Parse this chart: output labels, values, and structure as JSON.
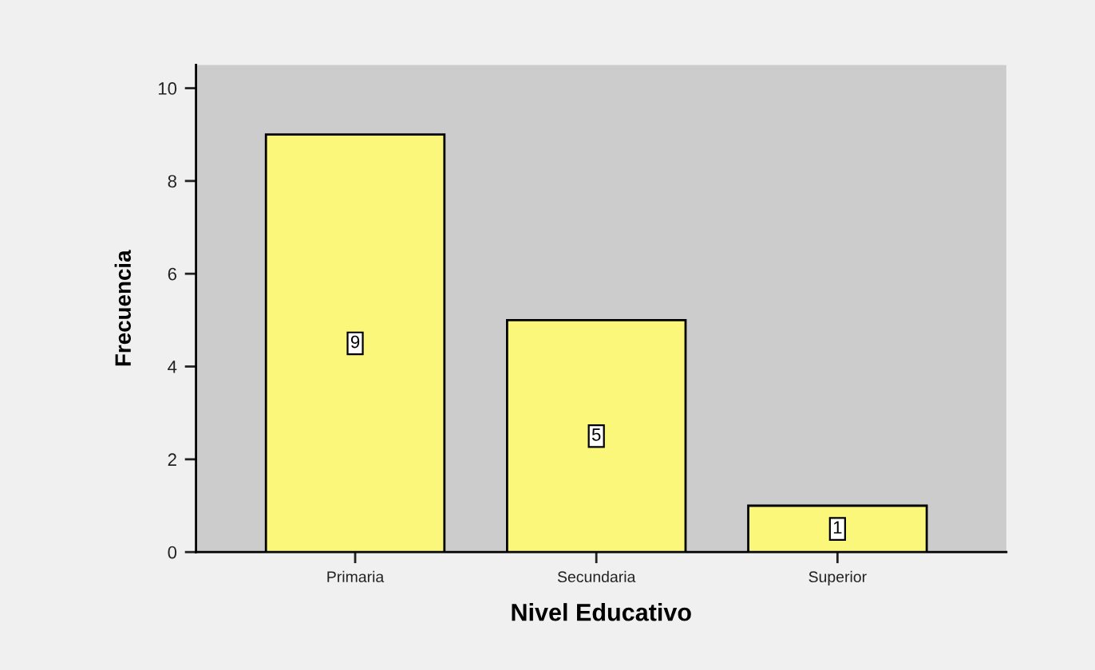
{
  "chart_data": {
    "type": "bar",
    "xlabel": "Nivel Educativo",
    "ylabel": "Frecuencia",
    "categories": [
      "Primaria",
      "Secundaria",
      "Superior"
    ],
    "values": [
      9,
      5,
      1
    ],
    "color": "#fbf77a",
    "ylim": [
      0,
      10.5
    ],
    "yticks": [
      0,
      2,
      4,
      6,
      8,
      10
    ],
    "data_labels": true
  }
}
